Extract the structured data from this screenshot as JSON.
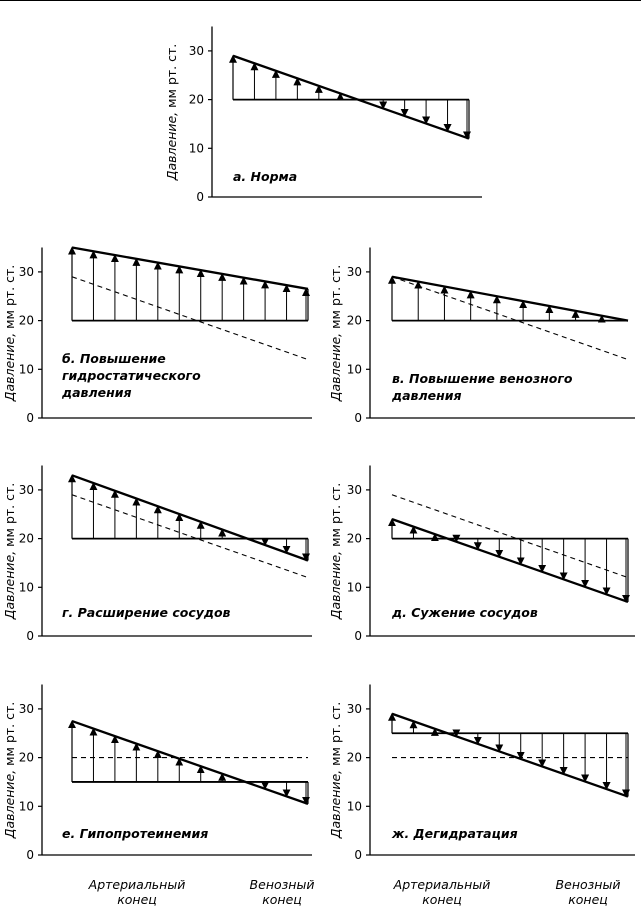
{
  "y_axis_label": {
    "italic": "Давление,",
    "rest": " мм рт. ст."
  },
  "x_axis_labels": [
    {
      "line1": "Артериальный",
      "line2": "конец"
    },
    {
      "line1": "Венозный",
      "line2": "конец"
    }
  ],
  "chart_data": [
    {
      "id": "a",
      "type": "line",
      "title_lines": [
        "а. Норма"
      ],
      "y_ticks": [
        0,
        10,
        20,
        30
      ],
      "ylim": [
        0,
        35
      ],
      "hydrostatic": [
        29,
        12
      ],
      "oncotic": [
        20,
        20
      ],
      "reference_hydrostatic": null,
      "reference_oncotic": null,
      "arrows": 12
    },
    {
      "id": "b",
      "type": "line",
      "title_lines": [
        "б. Повышение",
        "гидростатического",
        "давления"
      ],
      "y_ticks": [
        0,
        10,
        20,
        30
      ],
      "ylim": [
        0,
        35
      ],
      "hydrostatic": [
        35,
        26.5
      ],
      "oncotic": [
        20,
        20
      ],
      "reference_hydrostatic": [
        29,
        12
      ],
      "reference_oncotic": null,
      "arrows": 12
    },
    {
      "id": "v",
      "type": "line",
      "title_lines": [
        "в. Повышение венозного",
        "давления"
      ],
      "y_ticks": [
        0,
        10,
        20,
        30
      ],
      "ylim": [
        0,
        35
      ],
      "hydrostatic": [
        29,
        20
      ],
      "oncotic": [
        20,
        20
      ],
      "reference_hydrostatic": [
        29,
        12
      ],
      "reference_oncotic": null,
      "arrows": 10
    },
    {
      "id": "g",
      "type": "line",
      "title_lines": [
        "г. Расширение сосудов"
      ],
      "y_ticks": [
        0,
        10,
        20,
        30
      ],
      "ylim": [
        0,
        35
      ],
      "hydrostatic": [
        33,
        15.5
      ],
      "oncotic": [
        20,
        20
      ],
      "reference_hydrostatic": [
        29,
        12
      ],
      "reference_oncotic": null,
      "arrows": 12
    },
    {
      "id": "d",
      "type": "line",
      "title_lines": [
        "д. Сужение сосудов"
      ],
      "y_ticks": [
        0,
        10,
        20,
        30
      ],
      "ylim": [
        0,
        35
      ],
      "hydrostatic": [
        24,
        7
      ],
      "oncotic": [
        20,
        20
      ],
      "reference_hydrostatic": [
        29,
        12
      ],
      "reference_oncotic": null,
      "arrows": 12
    },
    {
      "id": "e",
      "type": "line",
      "title_lines": [
        "е. Гипопротеинемия"
      ],
      "y_ticks": [
        0,
        10,
        20,
        30
      ],
      "ylim": [
        0,
        35
      ],
      "hydrostatic": [
        27.5,
        10.5
      ],
      "oncotic": [
        15,
        15
      ],
      "reference_hydrostatic": null,
      "reference_oncotic": [
        20,
        20
      ],
      "arrows": 12
    },
    {
      "id": "zh",
      "type": "line",
      "title_lines": [
        "ж. Дегидратация"
      ],
      "y_ticks": [
        0,
        10,
        20,
        30
      ],
      "ylim": [
        0,
        35
      ],
      "hydrostatic": [
        29,
        12
      ],
      "oncotic": [
        25,
        25
      ],
      "reference_hydrostatic": null,
      "reference_oncotic": [
        20,
        20
      ],
      "arrows": 12
    }
  ]
}
